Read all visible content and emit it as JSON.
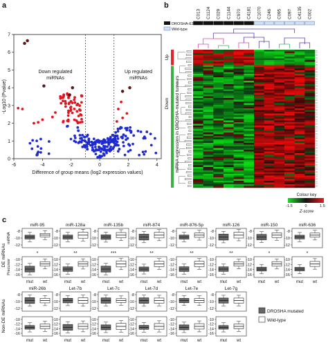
{
  "panel_a": {
    "label": "a",
    "ylabel": "-Log10 (Pvalue)",
    "xlabel": "Difference of group means (log2 expression values)",
    "down_text": [
      "Down regulated",
      "miRNAs"
    ],
    "up_text": [
      "Up regulated",
      "miRNAs"
    ],
    "x_ticks": [
      "-6",
      "-4",
      "-2",
      "0",
      "2",
      "4"
    ],
    "y_ticks": [
      "0",
      "1",
      "2",
      "3",
      "4",
      "5",
      "6",
      "7"
    ]
  },
  "panel_b": {
    "label": "b",
    "samples": [
      "C013",
      "C1124",
      "C029",
      "C1144",
      "C970",
      "C4181",
      "C1070",
      "C246",
      "C095",
      "C097",
      "C4135",
      "C002"
    ],
    "mutation_label": "DROSHA-E1147K",
    "wildtype_label": "Wild-type",
    "up_label": "Up",
    "down_label": "Down",
    "side_label": "miRNA expression in DROSHA-mutated tumours",
    "colour_key": "Colour key",
    "key_ticks": [
      "-1.5",
      "0",
      "1.5"
    ],
    "zscore": "Z-score",
    "colors": {
      "up": "#e8212b",
      "down": "#3cb043",
      "mutated": "#111111"
    }
  },
  "panel_c": {
    "label": "c",
    "row1_titles": [
      "miR-95",
      "miR-128a",
      "miR-135b",
      "miR-874",
      "miR-876-5p",
      "miR-126",
      "miR-150",
      "miR-636"
    ],
    "row2_titles": [
      "miR-26b",
      "Let-7b",
      "Let-7c",
      "Let-7d",
      "Let-7e",
      "Let-7g"
    ],
    "row_label_de": "DE miRNAs",
    "row_label_nonde": "Non-DE miRNAs",
    "sub_mirna": "miRNA",
    "sub_precursor": "Precursor",
    "xtick_mut": "mut",
    "xtick_wt": "wt",
    "yticks_a": [
      "-8",
      "-10",
      "-12"
    ],
    "yticks_b": [
      "-10",
      "-12",
      "-14",
      "-16"
    ],
    "stars": [
      "*",
      "**",
      "***",
      "**",
      "**",
      "**",
      "*",
      "*"
    ],
    "legend_mut": "DROSHA mutated",
    "legend_wt": "Wild-type"
  }
}
